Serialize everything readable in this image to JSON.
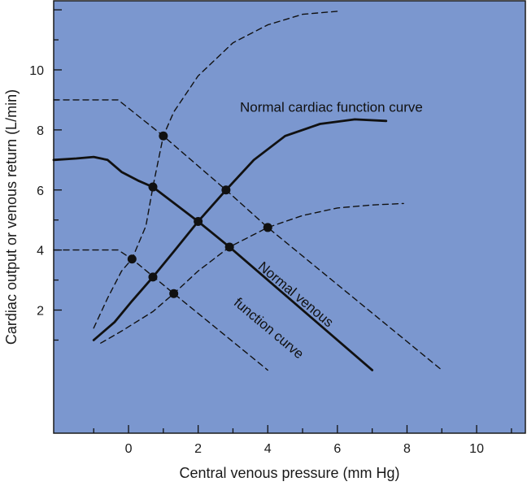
{
  "chart_data": {
    "type": "line",
    "xlabel": "Central venous pressure (mm Hg)",
    "ylabel": "Cardiac output or venous return (L/min)",
    "x_ticks": [
      "0",
      "2",
      "4",
      "6",
      "8",
      "10"
    ],
    "y_ticks": [
      "2",
      "4",
      "6",
      "8",
      "10"
    ],
    "xlim": [
      -2.15,
      11.4
    ],
    "ylim": [
      -2.1,
      12.3
    ],
    "grid": false,
    "colors": {
      "background": "#7b97cf",
      "ink": "#111111"
    },
    "annotations": [
      {
        "text": "Normal cardiac function curve",
        "x": 3.2,
        "y": 8.6,
        "rotate": 0
      },
      {
        "text": "Normal venous",
        "x": 3.7,
        "y": 3.4,
        "rotate": 40
      },
      {
        "text": "function curve",
        "x": 3.0,
        "y": 2.2,
        "rotate": 40
      }
    ],
    "series": [
      {
        "style": "solid",
        "points": [
          [
            -2.15,
            7.0
          ],
          [
            -1.5,
            7.05
          ],
          [
            -1.0,
            7.1
          ],
          [
            -0.6,
            7.0
          ],
          [
            -0.2,
            6.6
          ],
          [
            0.3,
            6.3
          ],
          [
            0.7,
            6.1
          ],
          [
            2.0,
            4.95
          ],
          [
            2.9,
            4.1
          ],
          [
            7.0,
            0.0
          ]
        ]
      },
      {
        "style": "dashed",
        "points": [
          [
            -2.15,
            9.0
          ],
          [
            -0.3,
            9.0
          ],
          [
            1.0,
            7.8
          ],
          [
            2.8,
            6.0
          ],
          [
            4.0,
            4.75
          ],
          [
            9.0,
            0.0
          ]
        ]
      },
      {
        "style": "dashed",
        "points": [
          [
            -2.15,
            4.0
          ],
          [
            -0.3,
            4.0
          ],
          [
            0.1,
            3.7
          ],
          [
            1.3,
            2.55
          ],
          [
            4.0,
            0.0
          ]
        ]
      },
      {
        "style": "solid",
        "points": [
          [
            -1.0,
            1.0
          ],
          [
            -0.4,
            1.6
          ],
          [
            0.1,
            2.3
          ],
          [
            0.7,
            3.1
          ],
          [
            1.3,
            3.95
          ],
          [
            2.0,
            4.95
          ],
          [
            2.8,
            6.0
          ],
          [
            3.6,
            7.0
          ],
          [
            4.5,
            7.8
          ],
          [
            5.5,
            8.2
          ],
          [
            6.5,
            8.35
          ],
          [
            7.4,
            8.3
          ]
        ]
      },
      {
        "style": "dashed",
        "points": [
          [
            -1.0,
            1.4
          ],
          [
            -0.6,
            2.4
          ],
          [
            -0.2,
            3.3
          ],
          [
            0.1,
            3.7
          ],
          [
            0.5,
            4.8
          ],
          [
            0.7,
            6.1
          ],
          [
            1.0,
            7.8
          ],
          [
            1.3,
            8.6
          ],
          [
            2.0,
            9.8
          ],
          [
            3.0,
            10.9
          ],
          [
            4.0,
            11.5
          ],
          [
            5.0,
            11.85
          ],
          [
            6.0,
            11.95
          ]
        ]
      },
      {
        "style": "dashed",
        "points": [
          [
            -0.8,
            0.9
          ],
          [
            -0.2,
            1.3
          ],
          [
            0.7,
            1.95
          ],
          [
            1.3,
            2.55
          ],
          [
            2.0,
            3.3
          ],
          [
            2.9,
            4.1
          ],
          [
            4.0,
            4.75
          ],
          [
            5.0,
            5.15
          ],
          [
            6.0,
            5.4
          ],
          [
            7.0,
            5.5
          ],
          [
            7.9,
            5.55
          ]
        ]
      }
    ],
    "points": [
      [
        1.0,
        7.8
      ],
      [
        0.7,
        6.1
      ],
      [
        2.8,
        6.0
      ],
      [
        2.0,
        4.95
      ],
      [
        4.0,
        4.75
      ],
      [
        2.9,
        4.1
      ],
      [
        0.1,
        3.7
      ],
      [
        0.7,
        3.1
      ],
      [
        1.3,
        2.55
      ]
    ]
  }
}
